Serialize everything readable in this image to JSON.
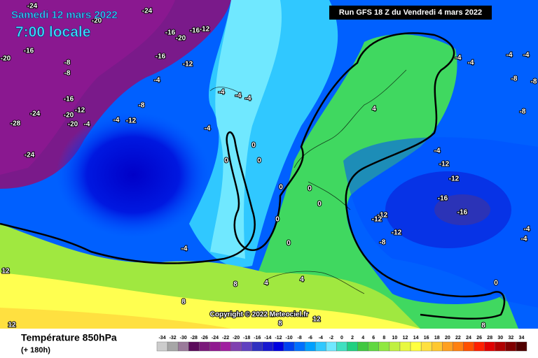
{
  "header": {
    "date": "Samedi 12 mars 2022",
    "time": "7:00 locale",
    "run": "Run GFS 18 Z du Vendredi 4 mars 2022"
  },
  "copyright": "Copyright © 2022 Meteociel.fr",
  "legend": {
    "title": "Température 850hPa",
    "subtitle": "(+ 180h)",
    "scale": {
      "values": [
        -34,
        -32,
        -30,
        -28,
        -26,
        -24,
        -22,
        -20,
        -18,
        -16,
        -14,
        -12,
        -10,
        -8,
        -6,
        -4,
        -2,
        0,
        2,
        4,
        6,
        8,
        10,
        12,
        14,
        16,
        18,
        20,
        22,
        24,
        26,
        28,
        30,
        32,
        34
      ],
      "colors": [
        "#cccccc",
        "#a6a6a6",
        "#9a7a9a",
        "#5a0a5a",
        "#7a1a7a",
        "#901890",
        "#a020a0",
        "#8040b0",
        "#6040c0",
        "#3030c0",
        "#1818d0",
        "#0000e0",
        "#0040f0",
        "#0070ff",
        "#00a0ff",
        "#30c8ff",
        "#70e8ff",
        "#40e0c0",
        "#20d080",
        "#40c840",
        "#60d840",
        "#90e840",
        "#c0f040",
        "#e8f840",
        "#ffff40",
        "#ffe040",
        "#ffc830",
        "#ffa020",
        "#ff8010",
        "#ff5000",
        "#ff2000",
        "#e00000",
        "#b00000",
        "#800000",
        "#500000"
      ]
    }
  },
  "map": {
    "contour_labels": [
      -24,
      -24,
      -20,
      -16,
      -16,
      -12,
      -20,
      -16,
      -16,
      -12,
      -20,
      -8,
      -8,
      -4,
      -16,
      -12,
      -20,
      -24,
      -28,
      -20,
      -4,
      -4,
      -12,
      -8,
      -4,
      -4,
      -4,
      -4,
      -24,
      0,
      0,
      0,
      0,
      0,
      0,
      0,
      0,
      4,
      -4,
      -4,
      -4,
      -4,
      -8,
      -8,
      -8,
      -4,
      -12,
      -12,
      -16,
      -16,
      -12,
      -12,
      -12,
      -8,
      -4,
      -4,
      -4,
      8,
      4,
      4,
      8,
      12,
      12,
      0,
      8,
      8,
      12
    ]
  }
}
